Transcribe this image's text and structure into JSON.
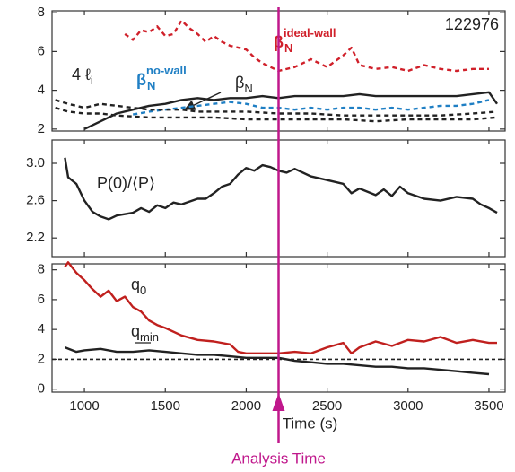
{
  "chart_data": [
    {
      "type": "line",
      "xlim": [
        800,
        3600
      ],
      "ylim": [
        1.9,
        8.1
      ],
      "yticks": [
        2,
        4,
        6,
        8
      ],
      "annotations": [
        {
          "text": "4 ℓ",
          "sub": "i",
          "color": "#222222"
        },
        {
          "text": "β",
          "sub": "N",
          "sup": "no-wall",
          "color": "#1f7fc4"
        },
        {
          "text": "β",
          "sub": "N",
          "color": "#222222"
        },
        {
          "text": "β",
          "sub": "N",
          "sup": "ideal-wall",
          "color": "#d0202a"
        },
        {
          "text": "122976",
          "color": "#222222"
        }
      ],
      "series": [
        {
          "color": "#d0202a",
          "dash": true,
          "x": [
            1250,
            1300,
            1350,
            1400,
            1450,
            1500,
            1550,
            1600,
            1650,
            1700,
            1750,
            1800,
            1850,
            1900,
            2000,
            2050,
            2100,
            2200,
            2300,
            2400,
            2500,
            2600,
            2650,
            2700,
            2800,
            2900,
            3000,
            3100,
            3200,
            3300,
            3400,
            3500
          ],
          "values": [
            6.9,
            6.6,
            7.1,
            7.0,
            7.3,
            6.8,
            6.9,
            7.6,
            7.2,
            6.9,
            6.5,
            6.8,
            6.5,
            6.3,
            6.1,
            5.7,
            5.4,
            5.0,
            5.2,
            5.6,
            5.2,
            5.8,
            6.2,
            5.3,
            5.1,
            5.2,
            5.0,
            5.3,
            5.1,
            5.0,
            5.1,
            5.1
          ]
        },
        {
          "color": "#1f7fc4",
          "dash": true,
          "x": [
            1300,
            1400,
            1500,
            1600,
            1700,
            1800,
            1900,
            2000,
            2100,
            2200,
            2300,
            2400,
            2500,
            2600,
            2700,
            2800,
            2900,
            3000,
            3100,
            3200,
            3300,
            3400,
            3500
          ],
          "values": [
            2.75,
            2.9,
            3.0,
            3.1,
            3.2,
            3.3,
            3.4,
            3.3,
            3.1,
            3.1,
            3.0,
            3.1,
            3.0,
            3.1,
            3.1,
            3.0,
            3.1,
            3.0,
            3.1,
            3.2,
            3.2,
            3.3,
            3.5
          ]
        },
        {
          "color": "#222222",
          "dash": false,
          "x": [
            1000,
            1100,
            1200,
            1300,
            1400,
            1500,
            1600,
            1700,
            1800,
            1900,
            2000,
            2100,
            2200,
            2300,
            2400,
            2500,
            2600,
            2700,
            2800,
            2900,
            3000,
            3100,
            3200,
            3300,
            3400,
            3500,
            3550
          ],
          "values": [
            2.0,
            2.4,
            2.8,
            3.0,
            3.2,
            3.3,
            3.5,
            3.6,
            3.5,
            3.6,
            3.6,
            3.7,
            3.6,
            3.7,
            3.7,
            3.7,
            3.7,
            3.8,
            3.7,
            3.7,
            3.7,
            3.7,
            3.7,
            3.7,
            3.8,
            3.9,
            3.3
          ]
        },
        {
          "color": "#222222",
          "dash": true,
          "x": [
            820,
            900,
            1000,
            1100,
            1200,
            1300,
            1400,
            1500,
            1600,
            1700,
            1800,
            1900,
            2000,
            2200,
            2400,
            2600,
            2800,
            3000,
            3200,
            3400,
            3550
          ],
          "values": [
            3.5,
            3.3,
            3.1,
            3.3,
            3.2,
            3.1,
            3.0,
            3.0,
            3.0,
            2.9,
            2.9,
            2.9,
            2.9,
            2.8,
            2.8,
            2.7,
            2.7,
            2.7,
            2.7,
            2.8,
            2.9
          ]
        },
        {
          "color": "#222222",
          "dash": true,
          "x": [
            820,
            900,
            1000,
            1100,
            1200,
            1400,
            1600,
            1800,
            2000,
            2200,
            2400,
            2600,
            2800,
            3000,
            3200,
            3400,
            3550
          ],
          "values": [
            3.1,
            2.9,
            2.8,
            2.8,
            2.7,
            2.6,
            2.6,
            2.6,
            2.5,
            2.5,
            2.5,
            2.5,
            2.4,
            2.5,
            2.5,
            2.5,
            2.6
          ]
        }
      ]
    },
    {
      "type": "line",
      "xlim": [
        800,
        3600
      ],
      "ylim": [
        2.0,
        3.25
      ],
      "yticks": [
        {
          "value": 2.2,
          "label": "2.2"
        },
        {
          "value": 2.6,
          "label": "2.6"
        },
        {
          "value": 3.0,
          "label": "3.0"
        }
      ],
      "annotations": [
        {
          "text": "P(0)/⟨P⟩",
          "color": "#222222"
        }
      ],
      "series": [
        {
          "color": "#222222",
          "dash": false,
          "x": [
            880,
            900,
            950,
            1000,
            1050,
            1100,
            1150,
            1200,
            1300,
            1350,
            1400,
            1450,
            1500,
            1550,
            1600,
            1700,
            1750,
            1800,
            1850,
            1900,
            1950,
            2000,
            2050,
            2100,
            2150,
            2200,
            2250,
            2300,
            2400,
            2500,
            2600,
            2650,
            2700,
            2800,
            2850,
            2900,
            2950,
            3000,
            3100,
            3200,
            3300,
            3400,
            3450,
            3500,
            3550
          ],
          "values": [
            3.06,
            2.85,
            2.78,
            2.6,
            2.48,
            2.43,
            2.4,
            2.44,
            2.47,
            2.52,
            2.48,
            2.55,
            2.52,
            2.58,
            2.56,
            2.62,
            2.62,
            2.68,
            2.75,
            2.78,
            2.88,
            2.95,
            2.92,
            2.98,
            2.96,
            2.92,
            2.9,
            2.94,
            2.86,
            2.82,
            2.78,
            2.68,
            2.73,
            2.66,
            2.72,
            2.65,
            2.75,
            2.68,
            2.62,
            2.6,
            2.64,
            2.62,
            2.56,
            2.52,
            2.47
          ]
        }
      ]
    },
    {
      "type": "line",
      "xlim": [
        800,
        3600
      ],
      "ylim": [
        -0.2,
        8.4
      ],
      "yticks": [
        0,
        2,
        4,
        6,
        8
      ],
      "xticks": [
        1000,
        1500,
        2000,
        2500,
        3000,
        3500
      ],
      "xlabel": "Time (s)",
      "hline": 2,
      "annotations": [
        {
          "text": "q",
          "sub": "0",
          "color": "#222222"
        },
        {
          "text": "q",
          "sub": "min",
          "color": "#222222"
        }
      ],
      "series": [
        {
          "color": "#c0201e",
          "dash": false,
          "x": [
            880,
            900,
            950,
            1000,
            1050,
            1100,
            1150,
            1200,
            1250,
            1300,
            1350,
            1400,
            1450,
            1500,
            1600,
            1700,
            1800,
            1900,
            1950,
            2000,
            2100,
            2200,
            2300,
            2400,
            2500,
            2600,
            2650,
            2700,
            2800,
            2900,
            3000,
            3100,
            3200,
            3300,
            3400,
            3500,
            3550
          ],
          "values": [
            8.2,
            8.5,
            7.8,
            7.3,
            6.7,
            6.2,
            6.6,
            5.9,
            6.2,
            5.5,
            5.2,
            4.6,
            4.3,
            4.1,
            3.6,
            3.3,
            3.2,
            3.0,
            2.5,
            2.4,
            2.4,
            2.4,
            2.5,
            2.4,
            2.8,
            3.1,
            2.4,
            2.8,
            3.2,
            2.9,
            3.3,
            3.2,
            3.5,
            3.1,
            3.3,
            3.1,
            3.1
          ]
        },
        {
          "color": "#222222",
          "dash": false,
          "x": [
            880,
            950,
            1000,
            1100,
            1200,
            1300,
            1400,
            1500,
            1600,
            1700,
            1800,
            1900,
            2000,
            2100,
            2200,
            2300,
            2400,
            2500,
            2600,
            2700,
            2800,
            2900,
            3000,
            3100,
            3200,
            3300,
            3400,
            3500
          ],
          "values": [
            2.8,
            2.5,
            2.6,
            2.7,
            2.5,
            2.5,
            2.6,
            2.5,
            2.4,
            2.3,
            2.3,
            2.2,
            2.1,
            2.1,
            2.1,
            1.9,
            1.8,
            1.7,
            1.7,
            1.6,
            1.5,
            1.5,
            1.4,
            1.4,
            1.3,
            1.2,
            1.1,
            1.0
          ]
        }
      ]
    }
  ],
  "marker": {
    "x": 2200,
    "label": "Analysis Time",
    "color": "#c0188c"
  }
}
